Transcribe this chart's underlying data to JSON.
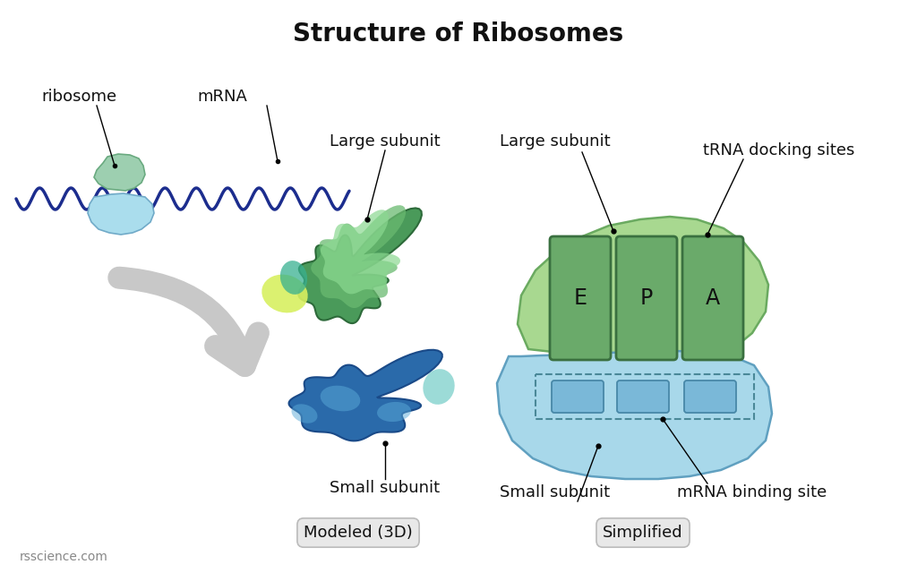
{
  "title": "Structure of Ribosomes",
  "title_fontsize": 20,
  "title_fontweight": "bold",
  "bg_color": "#ffffff",
  "text_color": "#111111",
  "ribosome_top_color": "#9dcfb0",
  "ribosome_top_edge": "#6aaa80",
  "ribosome_bottom_color": "#aadded",
  "ribosome_bottom_edge": "#70aac8",
  "mrna_color": "#1c2d8e",
  "large_3d_base": "#3d8b50",
  "large_3d_light": "#6ab870",
  "large_3d_lighter": "#8ed890",
  "large_3d_yg": "#d4f060",
  "large_3d_teal": "#3ab090",
  "small_3d_base": "#2a6aaa",
  "small_3d_light": "#4a9acc",
  "small_3d_teal": "#3ab8b0",
  "large_simp_fill": "#a8d890",
  "large_simp_edge": "#6aaa60",
  "small_simp_fill": "#a8d8ea",
  "small_simp_edge": "#60a0c0",
  "epa_fill": "#6aaa6a",
  "epa_edge": "#3a7040",
  "slot_fill": "#7ab8d8",
  "slot_edge": "#4888a8",
  "dashed_edge": "#4a8898",
  "arrow_color": "#c8c8c8",
  "footer_text": "rsscience.com",
  "label_ribosome": "ribosome",
  "label_mrna": "mRNA",
  "label_large": "Large subunit",
  "label_trna": "tRNA docking sites",
  "label_small": "Small subunit",
  "label_mrna_binding": "mRNA binding site",
  "label_modeled": "Modeled (3D)",
  "label_simplified": "Simplified",
  "epa_labels": [
    "E",
    "P",
    "A"
  ]
}
